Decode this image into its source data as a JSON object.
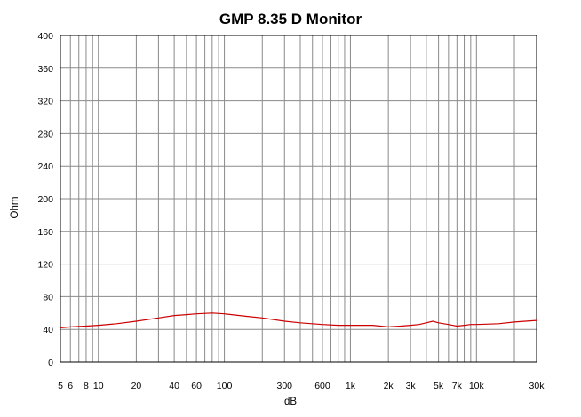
{
  "chart_data": {
    "type": "line",
    "title": "GMP 8.35 D Monitor",
    "xlabel": "dB",
    "ylabel": "Ohm",
    "x_scale": "log",
    "xlim": [
      5,
      30000
    ],
    "ylim": [
      0,
      400
    ],
    "grid": true,
    "y_ticks": [
      0,
      40,
      80,
      120,
      160,
      200,
      240,
      280,
      320,
      360,
      400
    ],
    "x_ticks": [
      {
        "value": 5,
        "label": "5"
      },
      {
        "value": 6,
        "label": "6"
      },
      {
        "value": 8,
        "label": "8"
      },
      {
        "value": 10,
        "label": "10"
      },
      {
        "value": 20,
        "label": "20"
      },
      {
        "value": 40,
        "label": "40"
      },
      {
        "value": 60,
        "label": "60"
      },
      {
        "value": 100,
        "label": "100"
      },
      {
        "value": 300,
        "label": "300"
      },
      {
        "value": 600,
        "label": "600"
      },
      {
        "value": 1000,
        "label": "1k"
      },
      {
        "value": 2000,
        "label": "2k"
      },
      {
        "value": 3000,
        "label": "3k"
      },
      {
        "value": 5000,
        "label": "5k"
      },
      {
        "value": 7000,
        "label": "7k"
      },
      {
        "value": 10000,
        "label": "10k"
      },
      {
        "value": 30000,
        "label": "30k"
      }
    ],
    "series": [
      {
        "color": "#cc0000",
        "x": [
          5,
          6,
          8,
          10,
          14,
          20,
          30,
          40,
          50,
          60,
          80,
          100,
          150,
          200,
          300,
          400,
          600,
          800,
          1000,
          1500,
          2000,
          2500,
          3000,
          3500,
          4000,
          4500,
          5000,
          6000,
          7000,
          8000,
          9000,
          10000,
          15000,
          20000,
          30000
        ],
        "y": [
          42,
          43,
          44,
          45,
          47,
          50,
          54,
          57,
          58,
          59,
          60,
          59,
          56,
          54,
          50,
          48,
          46,
          45,
          45,
          45,
          43,
          44,
          45,
          46,
          48,
          50,
          48,
          46,
          44,
          45,
          46,
          46,
          47,
          49,
          51
        ]
      }
    ]
  }
}
